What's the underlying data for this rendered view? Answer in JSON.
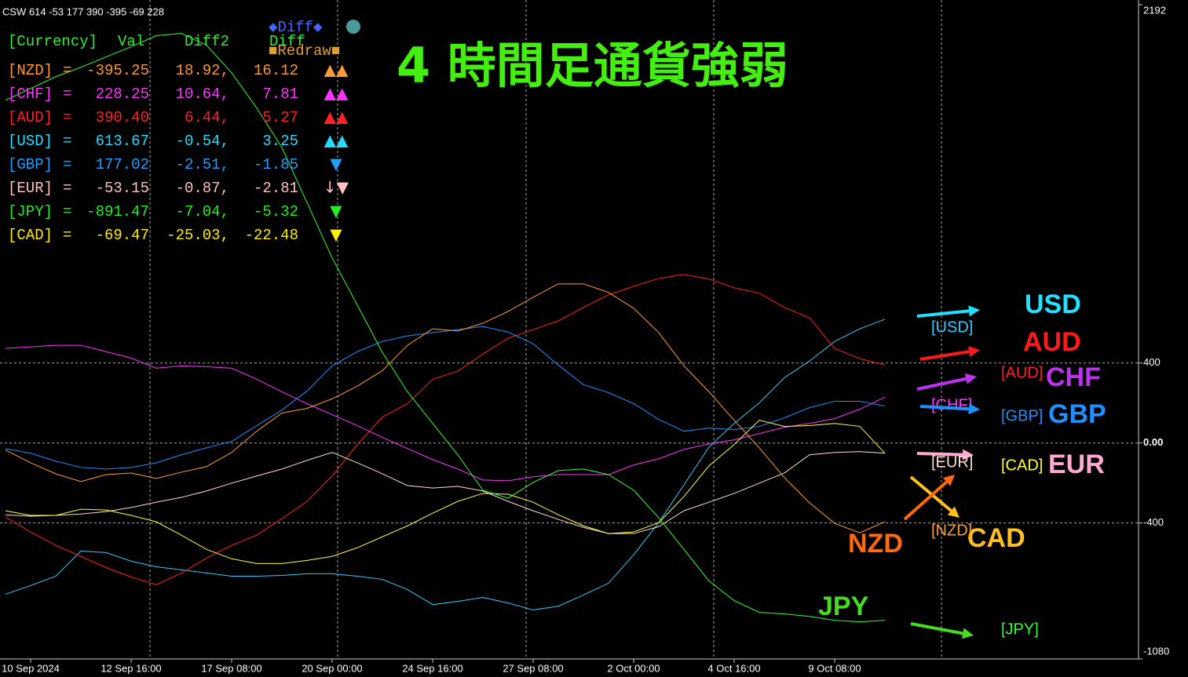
{
  "header": "CSW 614 -53 177 390 -395 -69 228",
  "title": "4 時間足通貨強弱",
  "controls": {
    "diff": "◆Diff◆",
    "redraw": "■Redraw■"
  },
  "table": {
    "columns": [
      "[Currency]",
      "Val",
      "Diff2",
      "Diff"
    ],
    "rows": [
      {
        "name": "[NZD]",
        "eq": "=",
        "val": "-395.25",
        "diff2": "18.92,",
        "diff": "16.12",
        "signal": "▲▲",
        "color": "#ff9933"
      },
      {
        "name": "[CHF]",
        "eq": "=",
        "val": "228.25",
        "diff2": "10.64,",
        "diff": "7.81",
        "signal": "▲▲",
        "color": "#ff33ff"
      },
      {
        "name": "[AUD]",
        "eq": "=",
        "val": "390.40",
        "diff2": "6.44,",
        "diff": "5.27",
        "signal": "▲▲",
        "color": "#ff2222"
      },
      {
        "name": "[USD]",
        "eq": "=",
        "val": "613.67",
        "diff2": "-0.54,",
        "diff": "3.25",
        "signal": "▲▲",
        "color": "#22ddff"
      },
      {
        "name": "[GBP]",
        "eq": "=",
        "val": "177.02",
        "diff2": "-2.51,",
        "diff": "-1.85",
        "signal": "▼",
        "color": "#1ea0ff"
      },
      {
        "name": "[EUR]",
        "eq": "=",
        "val": "-53.15",
        "diff2": "-0.87,",
        "diff": "-2.81",
        "signal": "↓▼",
        "color": "#ffc0c0"
      },
      {
        "name": "[JPY]",
        "eq": "=",
        "val": "-891.47",
        "diff2": "-7.04,",
        "diff": "-5.32",
        "signal": "▼",
        "color": "#22ee22"
      },
      {
        "name": "[CAD]",
        "eq": "=",
        "val": "-69.47",
        "diff2": "-25.03,",
        "diff": "-22.48",
        "signal": "▼",
        "color": "#ffee00"
      }
    ]
  },
  "chart_data": {
    "type": "line",
    "categories": [
      null,
      "10 Sep 2024",
      null,
      null,
      null,
      "12 Sep 16:00",
      null,
      null,
      null,
      "17 Sep 08:00",
      null,
      null,
      null,
      "20 Sep 00:00",
      null,
      null,
      null,
      "24 Sep 16:00",
      null,
      null,
      null,
      "27 Sep 08:00",
      null,
      null,
      null,
      "2 Oct 00:00",
      null,
      null,
      null,
      "4 Oct 16:00",
      null,
      null,
      null,
      "9 Oct 08:00",
      null,
      null
    ],
    "ylim": [
      -1080,
      2192
    ],
    "yticks": [
      2192,
      400,
      {
        "value": 0,
        "label": "0.00"
      },
      -400,
      -1080
    ],
    "grid": true,
    "series": [
      {
        "name": "USD",
        "tag": "[USD]",
        "color": "#33ccff",
        "label_color": "#22e0ff",
        "values": [
          -756,
          -713,
          -666,
          -540,
          -548,
          -591,
          -619,
          -634,
          -650,
          -666,
          -666,
          -662,
          -654,
          -654,
          -666,
          -682,
          -733,
          -808,
          -792,
          -772,
          -800,
          -835,
          -816,
          -760,
          -701,
          -559,
          -398,
          -209,
          -20,
          98,
          201,
          327,
          410,
          508,
          571,
          619
        ]
      },
      {
        "name": "AUD",
        "tag": "[AUD]",
        "color": "#ff2020",
        "label_color": "#ff1a1a",
        "values": [
          -370,
          -445,
          -512,
          -567,
          -623,
          -670,
          -709,
          -650,
          -575,
          -512,
          -461,
          -378,
          -292,
          -165,
          -8,
          130,
          197,
          319,
          359,
          445,
          524,
          567,
          611,
          678,
          741,
          784,
          823,
          843,
          820,
          776,
          749,
          678,
          626,
          473,
          422,
          390
        ]
      },
      {
        "name": "CHF",
        "tag": "[CHF]",
        "color": "#ff33ff",
        "label_color": "#bb33ee",
        "values": [
          473,
          481,
          489,
          489,
          457,
          425,
          374,
          386,
          382,
          374,
          319,
          256,
          197,
          142,
          87,
          28,
          -28,
          -83,
          -130,
          -185,
          -189,
          -169,
          -158,
          -158,
          -158,
          -110,
          -79,
          -32,
          -4,
          16,
          47,
          79,
          98,
          122,
          169,
          229
        ]
      },
      {
        "name": "GBP",
        "tag": "[GBP]",
        "color": "#1e90ff",
        "label_color": "#1e90ff",
        "values": [
          -28,
          -51,
          -91,
          -122,
          -130,
          -122,
          -99,
          -59,
          -24,
          8,
          87,
          165,
          260,
          386,
          457,
          508,
          536,
          552,
          567,
          583,
          555,
          496,
          390,
          292,
          252,
          197,
          118,
          59,
          75,
          67,
          83,
          126,
          177,
          209,
          209,
          185
        ]
      },
      {
        "name": "EUR",
        "tag": "[EUR]",
        "color": "#ffe0d0",
        "label_color": "#ffaad0",
        "values": [
          -359,
          -366,
          -362,
          -355,
          -343,
          -323,
          -296,
          -272,
          -240,
          -201,
          -165,
          -130,
          -87,
          -47,
          -99,
          -154,
          -213,
          -225,
          -217,
          -240,
          -292,
          -339,
          -382,
          -422,
          -453,
          -453,
          -418,
          -339,
          -296,
          -252,
          -201,
          -150,
          -59,
          -47,
          -43,
          -51
        ]
      },
      {
        "name": "CAD",
        "tag": "[CAD]",
        "color": "#ffff40",
        "label_color": "#ffc020",
        "values": [
          -339,
          -362,
          -362,
          -331,
          -335,
          -362,
          -394,
          -461,
          -532,
          -579,
          -603,
          -603,
          -587,
          -567,
          -524,
          -469,
          -414,
          -351,
          -292,
          -252,
          -256,
          -296,
          -359,
          -414,
          -453,
          -445,
          -398,
          -268,
          -114,
          -8,
          114,
          83,
          87,
          98,
          83,
          -51
        ]
      },
      {
        "name": "NZD",
        "tag": "[NZD]",
        "color": "#ffa030",
        "label_color": "#ff6a10",
        "values": [
          -35,
          -99,
          -154,
          -193,
          -158,
          -150,
          -177,
          -146,
          -118,
          -47,
          59,
          150,
          173,
          221,
          284,
          362,
          489,
          571,
          560,
          599,
          658,
          729,
          796,
          796,
          753,
          674,
          552,
          386,
          256,
          114,
          -24,
          -173,
          -299,
          -402,
          -449,
          -394
        ]
      },
      {
        "name": "JPY",
        "tag": "[JPY]",
        "color": "#33ff33",
        "label_color": "#44dd22",
        "values": [
          1714,
          1773,
          1832,
          1879,
          1931,
          1982,
          2037,
          2049,
          1990,
          1852,
          1675,
          1478,
          1202,
          926,
          690,
          453,
          256,
          98,
          -59,
          -236,
          -276,
          -197,
          -138,
          -130,
          -158,
          -236,
          -374,
          -532,
          -690,
          -788,
          -847,
          -855,
          -867,
          -887,
          -894,
          -887
        ]
      }
    ]
  }
}
